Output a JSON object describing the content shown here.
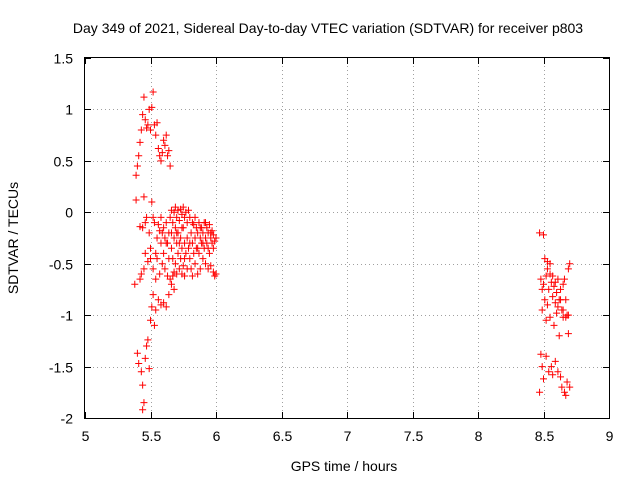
{
  "chart_data": {
    "type": "scatter",
    "title": "Day 349 of 2021, Sidereal Day-to-day VTEC variation (SDTVAR) for receiver p803",
    "xlabel": "GPS time / hours",
    "ylabel": "SDTVAR / TECUs",
    "xlim": [
      5,
      9
    ],
    "ylim": [
      -2,
      1.5
    ],
    "xticks": [
      "5",
      "5.5",
      "6",
      "6.5",
      "7",
      "7.5",
      "8",
      "8.5",
      "9"
    ],
    "yticks": [
      "1.5",
      "1",
      "0.5",
      "0",
      "-0.5",
      "-1",
      "-1.5",
      "-2"
    ],
    "grid": true,
    "marker": "+",
    "color": "#ff0000",
    "series": [
      {
        "name": "SDTVAR",
        "points": [
          [
            5.38,
            -0.7
          ],
          [
            5.39,
            0.12
          ],
          [
            5.39,
            0.36
          ],
          [
            5.4,
            0.45
          ],
          [
            5.4,
            -1.37
          ],
          [
            5.41,
            0.55
          ],
          [
            5.41,
            -1.47
          ],
          [
            5.42,
            0.68
          ],
          [
            5.42,
            -0.65
          ],
          [
            5.42,
            -0.14
          ],
          [
            5.43,
            0.8
          ],
          [
            5.43,
            -0.6
          ],
          [
            5.43,
            -1.55
          ],
          [
            5.44,
            0.95
          ],
          [
            5.44,
            -1.68
          ],
          [
            5.44,
            -1.92
          ],
          [
            5.45,
            1.12
          ],
          [
            5.45,
            -0.55
          ],
          [
            5.45,
            0.15
          ],
          [
            5.45,
            -1.85
          ],
          [
            5.46,
            0.9
          ],
          [
            5.46,
            -0.4
          ],
          [
            5.46,
            -1.42
          ],
          [
            5.47,
            0.82
          ],
          [
            5.47,
            -0.05
          ],
          [
            5.47,
            -1.3
          ],
          [
            5.48,
            0.85
          ],
          [
            5.48,
            -0.48
          ],
          [
            5.48,
            -1.24
          ],
          [
            5.49,
            1.0
          ],
          [
            5.49,
            -0.2
          ],
          [
            5.49,
            -1.52
          ],
          [
            5.5,
            0.8
          ],
          [
            5.5,
            -0.35
          ],
          [
            5.5,
            -1.05
          ],
          [
            5.51,
            1.02
          ],
          [
            5.51,
            0.1
          ],
          [
            5.51,
            -0.92
          ],
          [
            5.52,
            1.17
          ],
          [
            5.52,
            -0.55
          ],
          [
            5.52,
            -0.8
          ],
          [
            5.53,
            0.85
          ],
          [
            5.53,
            -0.1
          ],
          [
            5.53,
            -1.1
          ],
          [
            5.54,
            0.75
          ],
          [
            5.54,
            -0.65
          ],
          [
            5.54,
            -0.95
          ],
          [
            5.55,
            0.87
          ],
          [
            5.55,
            -0.25
          ],
          [
            5.55,
            -0.45
          ],
          [
            5.56,
            0.62
          ],
          [
            5.56,
            -0.12
          ],
          [
            5.56,
            -0.85
          ],
          [
            5.57,
            0.55
          ],
          [
            5.57,
            -0.18
          ],
          [
            5.57,
            -0.6
          ],
          [
            5.58,
            0.5
          ],
          [
            5.58,
            -0.3
          ],
          [
            5.58,
            -0.9
          ],
          [
            5.59,
            0.58
          ],
          [
            5.59,
            -0.2
          ],
          [
            5.59,
            -0.5
          ],
          [
            5.6,
            0.7
          ],
          [
            5.6,
            -0.15
          ],
          [
            5.6,
            -0.88
          ],
          [
            5.61,
            0.65
          ],
          [
            5.61,
            -0.25
          ],
          [
            5.61,
            -0.55
          ],
          [
            5.62,
            0.75
          ],
          [
            5.62,
            -0.1
          ],
          [
            5.62,
            -0.92
          ],
          [
            5.63,
            0.55
          ],
          [
            5.63,
            -0.3
          ],
          [
            5.63,
            -0.62
          ],
          [
            5.64,
            0.6
          ],
          [
            5.64,
            -0.2
          ],
          [
            5.64,
            -0.8
          ],
          [
            5.65,
            0.45
          ],
          [
            5.65,
            -0.05
          ],
          [
            5.65,
            -0.65
          ],
          [
            5.66,
            0.02
          ],
          [
            5.66,
            -0.35
          ],
          [
            5.66,
            -0.7
          ],
          [
            5.67,
            -0.1
          ],
          [
            5.67,
            -0.45
          ],
          [
            5.67,
            -0.62
          ],
          [
            5.68,
            0.0
          ],
          [
            5.68,
            -0.25
          ],
          [
            5.68,
            -0.58
          ],
          [
            5.69,
            0.05
          ],
          [
            5.69,
            -0.15
          ],
          [
            5.69,
            -0.5
          ],
          [
            5.7,
            -0.05
          ],
          [
            5.7,
            -0.3
          ],
          [
            5.7,
            -0.6
          ],
          [
            5.71,
            0.02
          ],
          [
            5.71,
            -0.2
          ],
          [
            5.71,
            -0.4
          ],
          [
            5.72,
            -0.08
          ],
          [
            5.72,
            -0.55
          ],
          [
            5.73,
            0.03
          ],
          [
            5.73,
            -0.25
          ],
          [
            5.73,
            -0.45
          ],
          [
            5.74,
            -0.02
          ],
          [
            5.74,
            -0.35
          ],
          [
            5.74,
            -0.6
          ],
          [
            5.75,
            0.05
          ],
          [
            5.75,
            -0.15
          ],
          [
            5.75,
            -0.52
          ],
          [
            5.76,
            -0.05
          ],
          [
            5.76,
            -0.3
          ],
          [
            5.76,
            -0.62
          ],
          [
            5.77,
            0.0
          ],
          [
            5.77,
            -0.4
          ],
          [
            5.78,
            -0.1
          ],
          [
            5.78,
            -0.55
          ],
          [
            5.79,
            0.02
          ],
          [
            5.79,
            -0.35
          ],
          [
            5.8,
            -0.05
          ],
          [
            5.8,
            -0.45
          ],
          [
            5.81,
            -0.2
          ],
          [
            5.81,
            -0.55
          ],
          [
            5.82,
            -0.3
          ],
          [
            5.82,
            -0.62
          ],
          [
            5.83,
            -0.12
          ],
          [
            5.83,
            -0.4
          ],
          [
            5.84,
            -0.25
          ],
          [
            5.84,
            -0.5
          ],
          [
            5.85,
            -0.15
          ],
          [
            5.85,
            -0.35
          ],
          [
            5.86,
            -0.2
          ],
          [
            5.86,
            -0.6
          ],
          [
            5.87,
            -0.1
          ],
          [
            5.87,
            -0.4
          ],
          [
            5.88,
            -0.25
          ],
          [
            5.88,
            -0.55
          ],
          [
            5.89,
            -0.15
          ],
          [
            5.89,
            -0.3
          ],
          [
            5.9,
            -0.2
          ],
          [
            5.9,
            -0.45
          ],
          [
            5.91,
            -0.1
          ],
          [
            5.91,
            -0.35
          ],
          [
            5.92,
            -0.25
          ],
          [
            5.92,
            -0.5
          ],
          [
            5.93,
            -0.15
          ],
          [
            5.93,
            -0.3
          ],
          [
            5.94,
            -0.2
          ],
          [
            5.94,
            -0.55
          ],
          [
            5.95,
            -0.12
          ],
          [
            5.95,
            -0.4
          ],
          [
            5.96,
            -0.25
          ],
          [
            5.96,
            -0.52
          ],
          [
            5.97,
            -0.18
          ],
          [
            5.97,
            -0.3
          ],
          [
            5.98,
            -0.22
          ],
          [
            5.98,
            -0.58
          ],
          [
            5.99,
            -0.28
          ],
          [
            5.99,
            -0.62
          ],
          [
            6.0,
            -0.25
          ],
          [
            6.0,
            -0.6
          ],
          [
            5.44,
            -0.15
          ],
          [
            5.46,
            -0.1
          ],
          [
            5.5,
            -0.45
          ],
          [
            5.52,
            -0.05
          ],
          [
            5.54,
            -0.4
          ],
          [
            5.58,
            -0.05
          ],
          [
            5.6,
            -0.4
          ],
          [
            5.62,
            -0.3
          ],
          [
            5.64,
            -0.45
          ],
          [
            5.66,
            -0.2
          ],
          [
            5.68,
            -0.75
          ],
          [
            5.7,
            -0.2
          ],
          [
            5.72,
            -0.3
          ],
          [
            5.74,
            -0.15
          ],
          [
            5.76,
            -0.45
          ],
          [
            5.78,
            -0.25
          ],
          [
            5.8,
            -0.3
          ],
          [
            5.82,
            -0.1
          ],
          [
            5.84,
            -0.05
          ],
          [
            5.86,
            -0.35
          ],
          [
            5.88,
            -0.15
          ],
          [
            5.9,
            -0.3
          ],
          [
            5.92,
            -0.1
          ],
          [
            5.94,
            -0.35
          ],
          [
            5.96,
            -0.2
          ],
          [
            5.98,
            -0.35
          ],
          [
            8.47,
            -0.2
          ],
          [
            8.48,
            -0.65
          ],
          [
            8.48,
            -1.38
          ],
          [
            8.49,
            -0.75
          ],
          [
            8.49,
            -1.5
          ],
          [
            8.49,
            -0.95
          ],
          [
            8.5,
            -0.7
          ],
          [
            8.5,
            -1.62
          ],
          [
            8.51,
            -0.45
          ],
          [
            8.51,
            -0.85
          ],
          [
            8.52,
            -0.62
          ],
          [
            8.52,
            -1.4
          ],
          [
            8.53,
            -0.55
          ],
          [
            8.53,
            -0.9
          ],
          [
            8.54,
            -0.75
          ],
          [
            8.54,
            -1.55
          ],
          [
            8.55,
            -0.6
          ],
          [
            8.55,
            -1.02
          ],
          [
            8.56,
            -0.68
          ],
          [
            8.56,
            -1.5
          ],
          [
            8.57,
            -0.82
          ],
          [
            8.57,
            -1.58
          ],
          [
            8.58,
            -0.72
          ],
          [
            8.58,
            -1.1
          ],
          [
            8.59,
            -0.88
          ],
          [
            8.59,
            -1.45
          ],
          [
            8.6,
            -0.78
          ],
          [
            8.6,
            -0.98
          ],
          [
            8.61,
            -0.65
          ],
          [
            8.61,
            -1.55
          ],
          [
            8.62,
            -0.85
          ],
          [
            8.62,
            -1.2
          ],
          [
            8.63,
            -0.75
          ],
          [
            8.63,
            -1.6
          ],
          [
            8.64,
            -0.95
          ],
          [
            8.64,
            -1.7
          ],
          [
            8.65,
            -0.7
          ],
          [
            8.65,
            -1.02
          ],
          [
            8.66,
            -0.65
          ],
          [
            8.66,
            -1.75
          ],
          [
            8.67,
            -0.85
          ],
          [
            8.67,
            -1.78
          ],
          [
            8.68,
            -1.0
          ],
          [
            8.68,
            -1.65
          ],
          [
            8.69,
            -0.55
          ],
          [
            8.69,
            -1.18
          ],
          [
            8.7,
            -0.5
          ],
          [
            8.7,
            -1.7
          ],
          [
            8.47,
            -1.75
          ],
          [
            8.5,
            -0.22
          ],
          [
            8.53,
            -0.48
          ],
          [
            8.55,
            -0.5
          ],
          [
            8.57,
            -0.62
          ],
          [
            8.59,
            -0.68
          ],
          [
            8.61,
            -0.92
          ],
          [
            8.63,
            -0.85
          ],
          [
            8.65,
            -0.95
          ],
          [
            8.67,
            -1.02
          ],
          [
            8.69,
            -1.0
          ],
          [
            8.52,
            -1.05
          ]
        ]
      }
    ]
  }
}
